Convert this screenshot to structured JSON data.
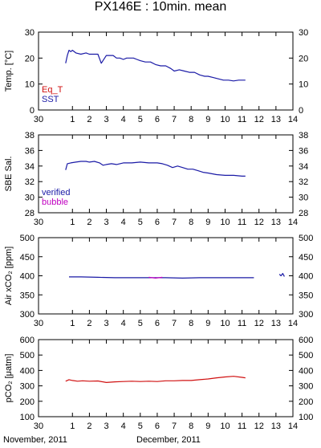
{
  "title": "PX146E : 10min. mean",
  "footer": {
    "left_label": "November, 2011",
    "right_label": "December, 2011"
  },
  "colors": {
    "verified": "#1a1aa6",
    "bubble": "#c000c0",
    "eq_t": "#d01010",
    "pco2": "#d01010",
    "sst": "#1a1aa6"
  },
  "chart_data": [
    {
      "type": "line",
      "ylabel": "Temp. [°C]",
      "ylim": [
        0,
        30
      ],
      "yticks": [
        0,
        10,
        20,
        30
      ],
      "xlim": [
        30,
        14
      ],
      "xticks": [
        30,
        1,
        2,
        3,
        4,
        5,
        6,
        7,
        8,
        9,
        10,
        11,
        12,
        13,
        14
      ],
      "legend": [
        "Eq_T",
        "SST"
      ],
      "series": [
        {
          "name": "SST",
          "color": "#1a1aa6",
          "x": [
            0.6,
            0.7,
            0.8,
            0.9,
            1.0,
            1.2,
            1.5,
            1.8,
            2.0,
            2.2,
            2.5,
            2.7,
            2.9,
            3.0,
            3.2,
            3.4,
            3.6,
            3.8,
            4.0,
            4.2,
            4.4,
            4.6,
            4.8,
            5.0,
            5.3,
            5.6,
            5.9,
            6.2,
            6.5,
            6.8,
            7.0,
            7.3,
            7.6,
            7.9,
            8.2,
            8.5,
            8.8,
            9.0,
            9.3,
            9.6,
            9.9,
            10.2,
            10.5,
            10.8,
            11.0,
            11.2
          ],
          "y": [
            18,
            21,
            23,
            22.5,
            23,
            22,
            21.5,
            22,
            21.5,
            21.5,
            21.5,
            18,
            20,
            21,
            21,
            21,
            20,
            20,
            19.5,
            20,
            20,
            20,
            19.5,
            19,
            18.5,
            18.5,
            17.5,
            17,
            17,
            16,
            15,
            15.5,
            15,
            14.5,
            14.5,
            13.5,
            13,
            13,
            12.5,
            12,
            11.5,
            11.5,
            11.2,
            11.5,
            11.5,
            11.5
          ]
        }
      ]
    },
    {
      "type": "line",
      "ylabel": "SBE Sal.",
      "ylim": [
        28,
        38
      ],
      "yticks": [
        28,
        30,
        32,
        34,
        36,
        38
      ],
      "xlim": [
        30,
        14
      ],
      "xticks": [
        30,
        1,
        2,
        3,
        4,
        5,
        6,
        7,
        8,
        9,
        10,
        11,
        12,
        13,
        14
      ],
      "legend": [
        "verified",
        "bubble"
      ],
      "series": [
        {
          "name": "verified",
          "color": "#1a1aa6",
          "x": [
            0.6,
            0.7,
            0.9,
            1.2,
            1.5,
            1.8,
            2.0,
            2.3,
            2.6,
            2.8,
            3.0,
            3.3,
            3.6,
            4.0,
            4.5,
            5.0,
            5.5,
            6.0,
            6.3,
            6.6,
            6.9,
            7.2,
            7.5,
            7.8,
            8.1,
            8.4,
            8.7,
            9.0,
            9.5,
            10.0,
            10.5,
            11.0,
            11.2
          ],
          "y": [
            33.5,
            34.3,
            34.4,
            34.5,
            34.6,
            34.6,
            34.5,
            34.6,
            34.4,
            34.1,
            34.2,
            34.3,
            34.2,
            34.4,
            34.4,
            34.5,
            34.4,
            34.4,
            34.3,
            34.1,
            33.8,
            34.0,
            33.8,
            33.6,
            33.6,
            33.4,
            33.2,
            33.1,
            32.9,
            32.8,
            32.8,
            32.7,
            32.7
          ]
        }
      ]
    },
    {
      "type": "line",
      "ylabel": "Air xCO₂ [ppm]",
      "ylim": [
        300,
        500
      ],
      "yticks": [
        300,
        350,
        400,
        450,
        500
      ],
      "xlim": [
        30,
        14
      ],
      "xticks": [
        30,
        1,
        2,
        3,
        4,
        5,
        6,
        7,
        8,
        9,
        10,
        11,
        12,
        13,
        14
      ],
      "series": [
        {
          "name": "verified",
          "color": "#1a1aa6",
          "x": [
            0.8,
            1.5,
            2.5,
            3.5,
            4.5,
            5.5,
            6.5,
            7.5,
            8.5,
            9.5,
            10.5,
            11.5,
            11.7
          ],
          "y": [
            397,
            397,
            396,
            395,
            395,
            395,
            395,
            394,
            395,
            395,
            395,
            395,
            395
          ]
        },
        {
          "name": "bubble",
          "color": "#c000c0",
          "x": [
            5.5,
            5.9,
            6.3
          ],
          "y": [
            396,
            394,
            396
          ]
        },
        {
          "name": "verified_end",
          "color": "#1a1aa6",
          "x": [
            13.2,
            13.3,
            13.4,
            13.5
          ],
          "y": [
            404,
            400,
            406,
            398
          ]
        }
      ]
    },
    {
      "type": "line",
      "ylabel": "pCO₂ [μatm]",
      "ylim": [
        100,
        600
      ],
      "yticks": [
        100,
        200,
        300,
        400,
        500,
        600
      ],
      "xlim": [
        30,
        14
      ],
      "xticks": [
        30,
        1,
        2,
        3,
        4,
        5,
        6,
        7,
        8,
        9,
        10,
        11,
        12,
        13,
        14
      ],
      "series": [
        {
          "name": "pCO2",
          "color": "#d01010",
          "x": [
            0.6,
            0.8,
            1.0,
            1.3,
            1.6,
            2.0,
            2.5,
            3.0,
            3.5,
            4.0,
            4.5,
            5.0,
            5.5,
            6.0,
            6.5,
            7.0,
            7.5,
            8.0,
            8.5,
            9.0,
            9.5,
            10.0,
            10.5,
            11.0,
            11.2
          ],
          "y": [
            330,
            340,
            335,
            330,
            333,
            330,
            332,
            322,
            326,
            328,
            330,
            328,
            330,
            328,
            333,
            333,
            335,
            335,
            340,
            345,
            352,
            358,
            362,
            355,
            352
          ]
        }
      ]
    }
  ]
}
